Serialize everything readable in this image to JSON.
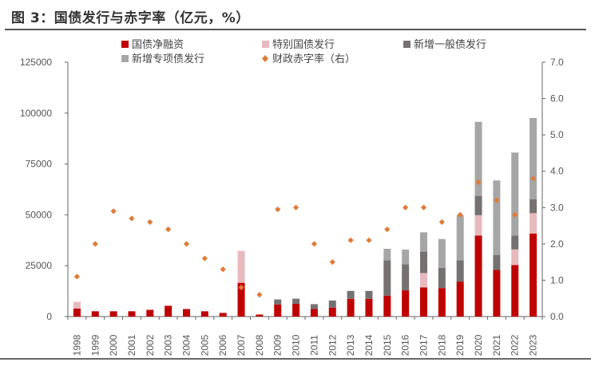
{
  "chart_data": {
    "type": "bar",
    "title": "图 3：国债发行与赤字率（亿元，%）",
    "categories": [
      "1998",
      "1999",
      "2000",
      "2001",
      "2002",
      "2003",
      "2004",
      "2005",
      "2006",
      "2007",
      "2008",
      "2009",
      "2010",
      "2011",
      "2012",
      "2013",
      "2014",
      "2015",
      "2016",
      "2017",
      "2018",
      "2019",
      "2020",
      "2021",
      "2022",
      "2023"
    ],
    "stacked": true,
    "series": [
      {
        "name": "国债净融资",
        "kind": "bar",
        "color": "#c00000",
        "values": [
          3900,
          2600,
          2600,
          2600,
          3300,
          5300,
          3700,
          2600,
          1800,
          16600,
          1000,
          5900,
          6300,
          3800,
          4400,
          8700,
          8700,
          10300,
          12900,
          14300,
          14000,
          17200,
          39800,
          22900,
          25300,
          40800
        ]
      },
      {
        "name": "特别国债发行",
        "kind": "bar",
        "color": "#e8b9bd",
        "values": [
          3300,
          0,
          0,
          0,
          0,
          0,
          0,
          0,
          0,
          15700,
          0,
          0,
          0,
          0,
          0,
          0,
          0,
          0,
          0,
          7100,
          0,
          0,
          10000,
          0,
          7700,
          10000
        ]
      },
      {
        "name": "新增一般债发行",
        "kind": "bar",
        "color": "#767171",
        "values": [
          0,
          0,
          0,
          0,
          0,
          0,
          0,
          0,
          0,
          0,
          0,
          2500,
          2500,
          2300,
          3500,
          3900,
          3900,
          17400,
          12800,
          10500,
          10000,
          10500,
          9500,
          7400,
          6800,
          6900
        ]
      },
      {
        "name": "新增专项债发行",
        "kind": "bar",
        "color": "#a6a6a6",
        "values": [
          0,
          0,
          0,
          0,
          0,
          0,
          0,
          0,
          0,
          0,
          0,
          0,
          0,
          0,
          0,
          0,
          0,
          5600,
          7200,
          9500,
          14100,
          22100,
          36400,
          36600,
          40800,
          39900
        ]
      },
      {
        "name": "财政赤字率（右）",
        "kind": "scatter",
        "axis": "right",
        "color": "#e07b39",
        "marker": "diamond",
        "values": [
          1.1,
          2.0,
          2.9,
          2.7,
          2.6,
          2.4,
          2.0,
          1.6,
          1.3,
          0.8,
          0.6,
          2.95,
          3.0,
          2.0,
          1.5,
          2.1,
          2.1,
          2.4,
          3.0,
          3.0,
          2.6,
          2.8,
          3.7,
          3.2,
          2.8,
          3.8
        ]
      }
    ],
    "y_left": {
      "lim": [
        0,
        125000
      ],
      "ticks": [
        "0",
        "25000",
        "50000",
        "75000",
        "100000",
        "125000"
      ]
    },
    "y_right": {
      "lim": [
        0,
        7
      ],
      "ticks": [
        "0.0",
        "1.0",
        "2.0",
        "3.0",
        "4.0",
        "5.0",
        "6.0",
        "7.0"
      ]
    },
    "grid": false,
    "legend_placement": "top"
  }
}
